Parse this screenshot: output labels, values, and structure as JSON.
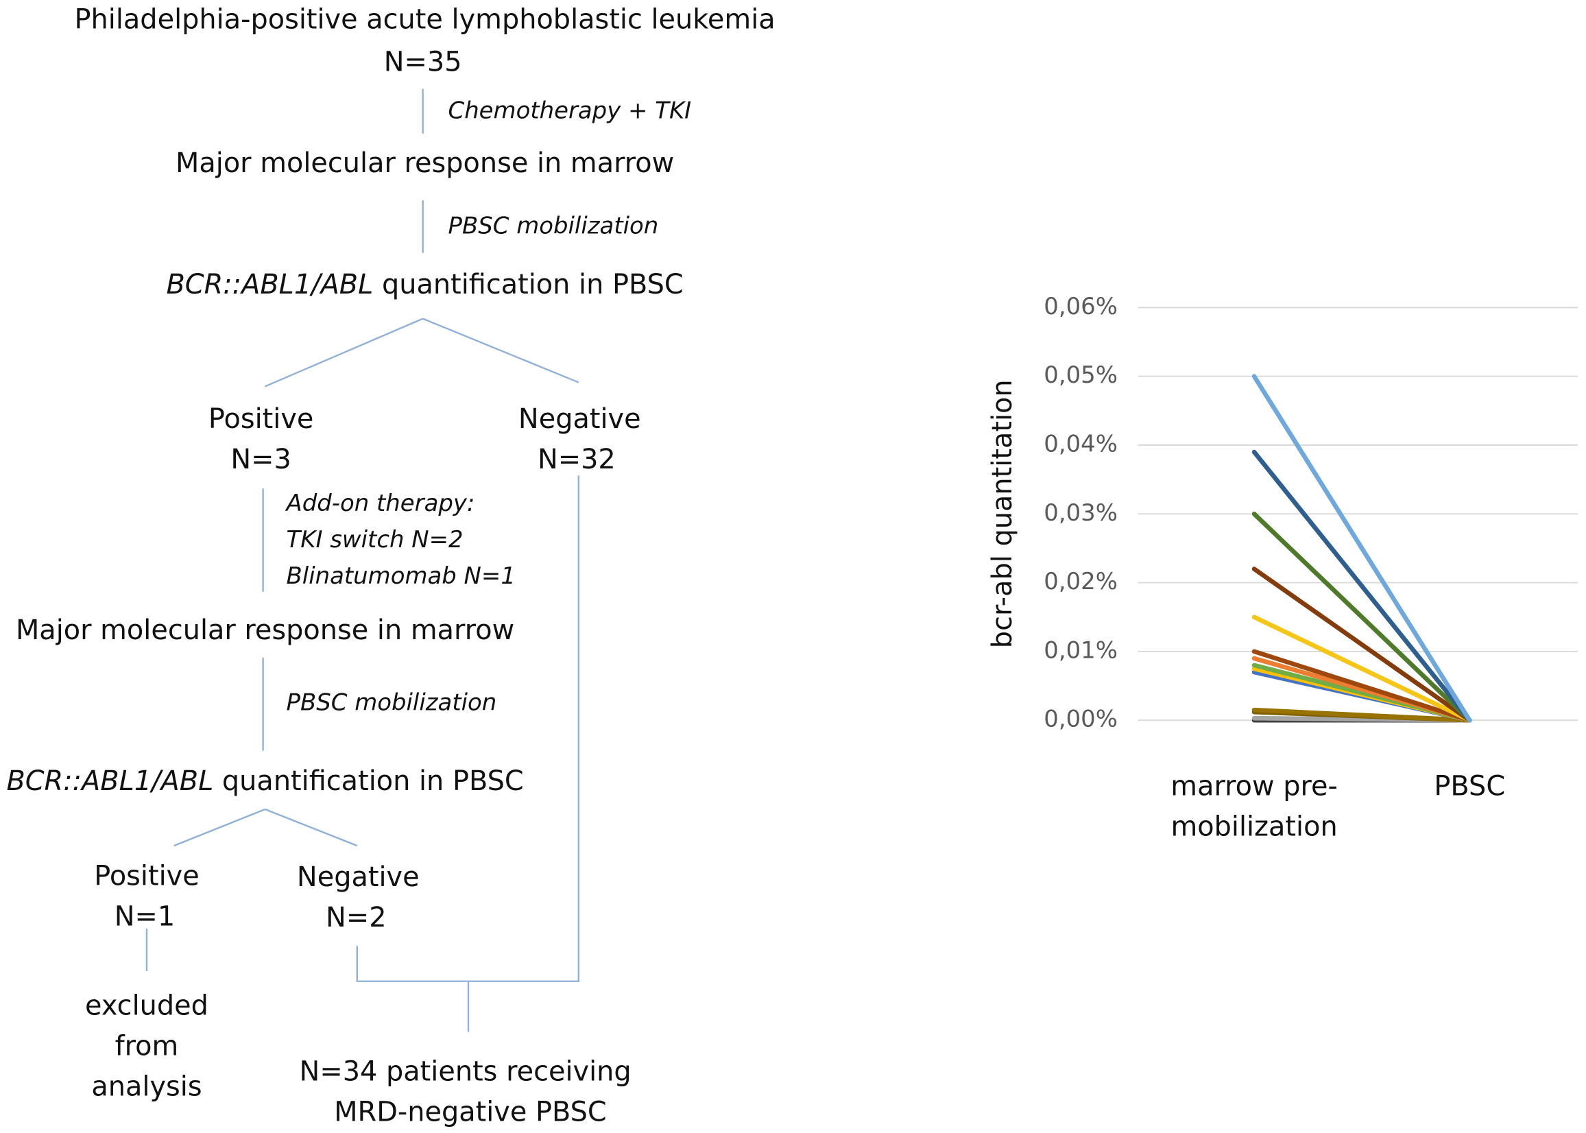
{
  "flowchart": {
    "start": [
      "Philadelphia-positive acute lymphoblastic leukemia",
      "N=35"
    ],
    "step1": "Chemotherapy + TKI",
    "response1": "Major molecular response in marrow",
    "step2": "PBSC mobilization",
    "quant1": [
      "BCR::ABL1/ABL",
      "quantification in PBSC"
    ],
    "positive1": [
      "Positive",
      "N=3"
    ],
    "negative1": [
      "Negative",
      "N=32"
    ],
    "addon": [
      "Add-on therapy:",
      "TKI switch N=2",
      "Blinatumomab N=1"
    ],
    "response2": "Major molecular response in marrow",
    "step3": "PBSC mobilization",
    "quant2": [
      "BCR::ABL1/ABL",
      "quantification in PBSC"
    ],
    "positive2": [
      "Positive",
      "N=1"
    ],
    "negative2": [
      "Negative",
      "N=2"
    ],
    "excluded": [
      "excluded",
      "from",
      "analysis"
    ],
    "result": [
      "N=34 patients receiving",
      "MRD-negative PBSC"
    ]
  },
  "chart_data": {
    "type": "line",
    "y_label": "bcr-abl quantitation",
    "categories": [
      "marrow pre-mobilization",
      "PBSC"
    ],
    "ylim": [
      0,
      0.06
    ],
    "yticks": [
      {
        "value": 0,
        "label": "0,00%"
      },
      {
        "value": 0.01,
        "label": "0,01%"
      },
      {
        "value": 0.02,
        "label": "0,02%"
      },
      {
        "value": 0.03,
        "label": "0,03%"
      },
      {
        "value": 0.04,
        "label": "0,04%"
      },
      {
        "value": 0.05,
        "label": "0,05%"
      },
      {
        "value": 0.06,
        "label": "0,06%"
      }
    ],
    "grid": true,
    "series": [
      {
        "color": "#404040",
        "values": [
          0,
          0
        ]
      },
      {
        "color": "#a5a5a5",
        "values": [
          0.0003,
          0
        ]
      },
      {
        "color": "#7f6000",
        "values": [
          0.0012,
          0
        ]
      },
      {
        "color": "#997300",
        "values": [
          0.0015,
          0
        ]
      },
      {
        "color": "#4472c4",
        "values": [
          0.007,
          0
        ]
      },
      {
        "color": "#ffc000",
        "values": [
          0.0075,
          0
        ]
      },
      {
        "color": "#70ad47",
        "values": [
          0.008,
          0
        ]
      },
      {
        "color": "#ed7d31",
        "values": [
          0.009,
          0
        ]
      },
      {
        "color": "#9e480e",
        "values": [
          0.01,
          0
        ]
      },
      {
        "color": "#f5c518",
        "values": [
          0.015,
          0
        ]
      },
      {
        "color": "#843c0c",
        "values": [
          0.022,
          0
        ]
      },
      {
        "color": "#4e7a2a",
        "values": [
          0.03,
          0
        ]
      },
      {
        "color": "#2e5f8e",
        "values": [
          0.039,
          0
        ]
      },
      {
        "color": "#6fa8dc",
        "values": [
          0.05,
          0
        ]
      }
    ]
  }
}
